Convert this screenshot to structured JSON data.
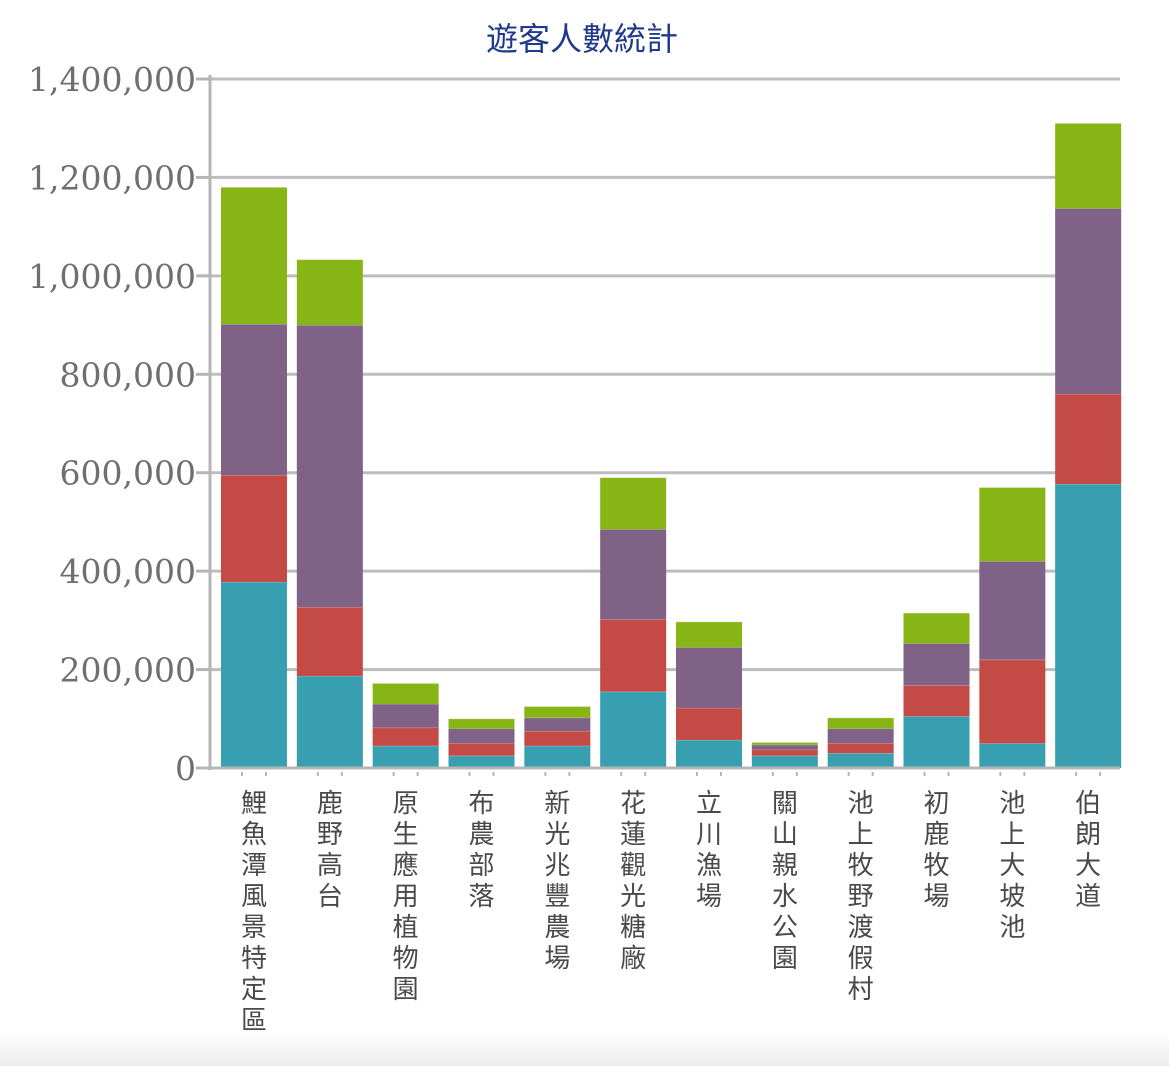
{
  "chart_data": {
    "type": "bar",
    "stacked": true,
    "title": "遊客人數統計",
    "xlabel": "",
    "ylabel": "",
    "ylim": [
      0,
      1400000
    ],
    "yticks": [
      0,
      200000,
      400000,
      600000,
      800000,
      1000000,
      1200000,
      1400000
    ],
    "ytick_labels": [
      "0",
      "200,000",
      "400,000",
      "600,000",
      "800,000",
      "1,000,000",
      "1,200,000",
      "1,400,000"
    ],
    "grid": true,
    "legend": "none",
    "categories": [
      "鯉魚潭風景特定區",
      "鹿野高台",
      "原生應用植物園",
      "布農部落",
      "新光兆豐農場",
      "花蓮觀光糖廠",
      "立川漁場",
      "關山親水公園",
      "池上牧野渡假村",
      "初鹿牧場",
      "池上大坡池",
      "伯朗大道"
    ],
    "series": [
      {
        "color": "#379fb0",
        "values": [
          378000,
          187000,
          45000,
          25000,
          45000,
          155000,
          57000,
          25000,
          30000,
          105000,
          50000,
          577000
        ]
      },
      {
        "color": "#c44a45",
        "values": [
          217000,
          140000,
          37000,
          25000,
          30000,
          147000,
          65000,
          12000,
          20000,
          63000,
          170000,
          183000
        ]
      },
      {
        "color": "#7f6285",
        "values": [
          307000,
          573000,
          48000,
          30000,
          27000,
          183000,
          123000,
          10000,
          30000,
          85000,
          200000,
          377000
        ]
      },
      {
        "color": "#88b516",
        "values": [
          278000,
          133000,
          42000,
          20000,
          23000,
          105000,
          52000,
          5000,
          22000,
          62000,
          150000,
          173000
        ]
      }
    ]
  }
}
